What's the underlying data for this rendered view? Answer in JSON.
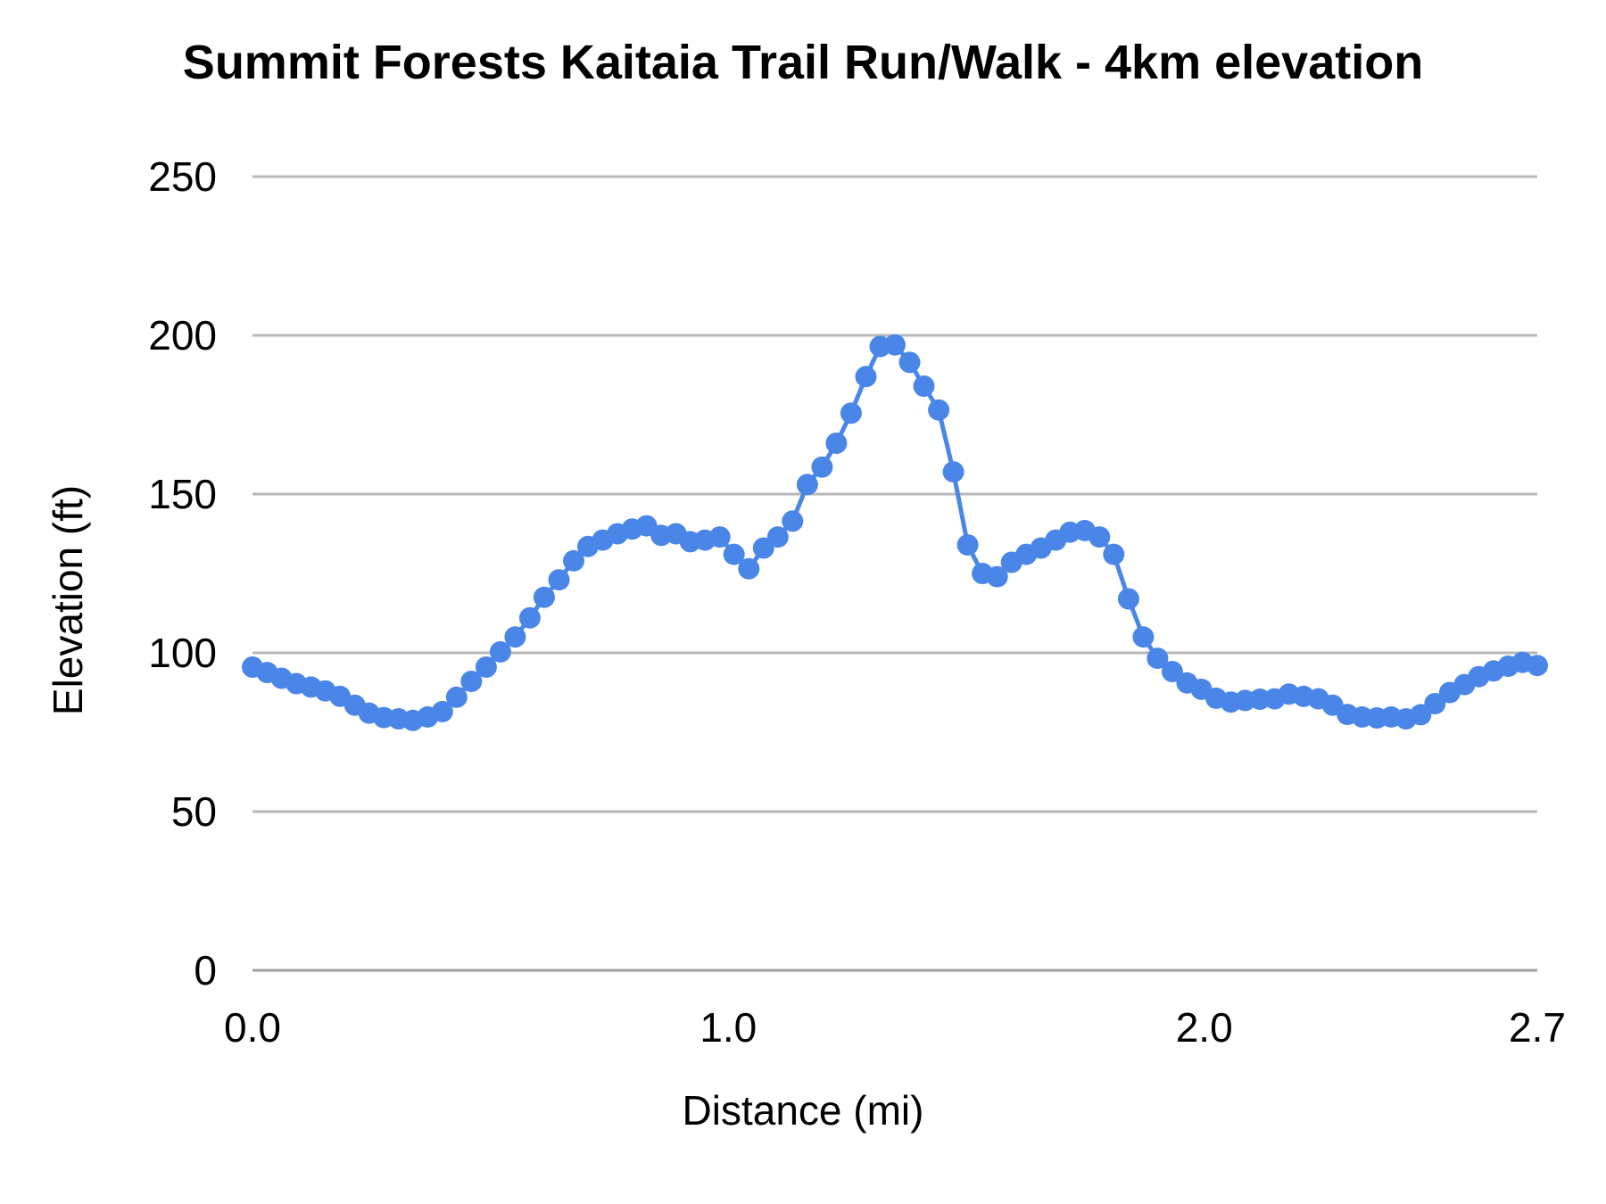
{
  "page": {
    "background": "#ffffff"
  },
  "chart_data": {
    "type": "line",
    "title": "Summit Forests Kaitaia Trail Run/Walk - 4km elevation",
    "xlabel": "Distance (mi)",
    "ylabel": "Elevation (ft)",
    "xlim": [
      0,
      2.7
    ],
    "ylim": [
      0,
      250
    ],
    "grid": "horizontal",
    "legend": "none",
    "grid_color": "#b7b7b7",
    "axis_color": "#9e9e9e",
    "x_ticks": {
      "values": [
        0,
        1,
        2,
        2.7
      ],
      "labels": [
        "0.0",
        "1.0",
        "2.0",
        "2.7"
      ]
    },
    "y_ticks": {
      "values": [
        0,
        50,
        100,
        150,
        200,
        250
      ],
      "labels": [
        "0",
        "50",
        "100",
        "150",
        "200",
        "250"
      ]
    },
    "series": [
      {
        "name": "Elevation",
        "color": "#4a86e8",
        "marker": "circle",
        "x_mi": [
          0.0,
          0.031,
          0.061,
          0.092,
          0.123,
          0.153,
          0.184,
          0.215,
          0.245,
          0.276,
          0.307,
          0.337,
          0.368,
          0.399,
          0.429,
          0.46,
          0.491,
          0.521,
          0.552,
          0.583,
          0.613,
          0.644,
          0.675,
          0.705,
          0.736,
          0.767,
          0.798,
          0.828,
          0.859,
          0.89,
          0.92,
          0.951,
          0.982,
          1.012,
          1.043,
          1.074,
          1.104,
          1.135,
          1.166,
          1.197,
          1.227,
          1.258,
          1.289,
          1.319,
          1.35,
          1.381,
          1.411,
          1.442,
          1.473,
          1.503,
          1.534,
          1.565,
          1.595,
          1.626,
          1.657,
          1.688,
          1.718,
          1.749,
          1.78,
          1.81,
          1.841,
          1.872,
          1.902,
          1.933,
          1.964,
          1.994,
          2.025,
          2.056,
          2.086,
          2.117,
          2.148,
          2.178,
          2.209,
          2.24,
          2.27,
          2.301,
          2.332,
          2.363,
          2.393,
          2.424,
          2.455,
          2.485,
          2.516,
          2.547,
          2.577,
          2.608,
          2.639,
          2.669,
          2.7
        ],
        "y_ft": [
          95.5,
          93.8,
          92.0,
          90.3,
          89.2,
          88.0,
          86.3,
          83.5,
          81.0,
          79.6,
          79.2,
          78.7,
          79.8,
          81.5,
          86.0,
          91.0,
          95.5,
          100.3,
          105.0,
          111.0,
          117.5,
          123.0,
          129.0,
          133.5,
          135.5,
          137.5,
          139.0,
          140.0,
          137.0,
          137.5,
          135.0,
          135.5,
          136.5,
          131.0,
          126.5,
          133.0,
          136.5,
          141.5,
          153.0,
          158.5,
          166.0,
          175.5,
          187.0,
          196.5,
          197.0,
          191.5,
          184.0,
          176.5,
          157.0,
          134.0,
          125.0,
          124.0,
          128.5,
          131.0,
          133.0,
          135.5,
          138.0,
          138.5,
          136.5,
          131.0,
          117.0,
          105.0,
          98.3,
          94.1,
          90.5,
          88.5,
          85.7,
          84.5,
          85.0,
          85.4,
          85.5,
          87.0,
          86.3,
          85.5,
          83.5,
          80.6,
          79.8,
          79.5,
          79.8,
          79.2,
          80.5,
          84.0,
          87.5,
          90.0,
          92.5,
          94.3,
          95.8,
          97.0,
          96.0
        ]
      }
    ]
  }
}
